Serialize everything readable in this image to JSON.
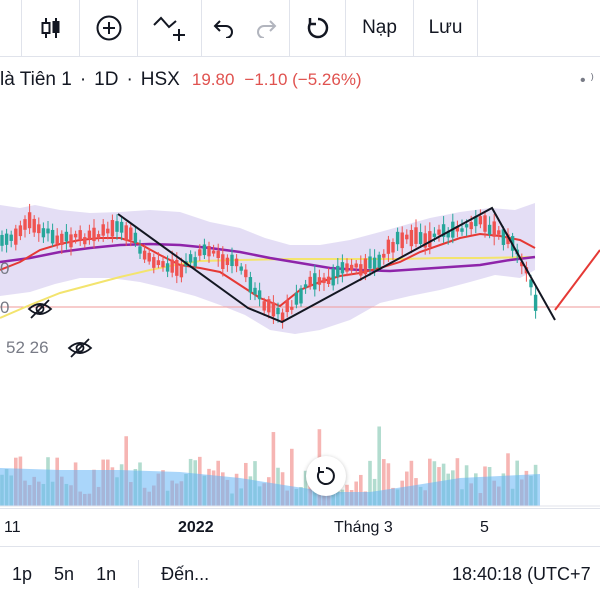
{
  "toolbar": {
    "reload_label": "Nạp",
    "save_label": "Lưu"
  },
  "symbol": {
    "name": "là Tiên 1",
    "interval": "1D",
    "exchange": "HSX",
    "price": "19.80",
    "change": "−1.10 (−5.26%)"
  },
  "indicator_labels": {
    "left_top": "0",
    "left_mid": "0",
    "ma_values": "52 26"
  },
  "x_axis": {
    "labels": [
      "11",
      "2022",
      "Tháng 3",
      "5"
    ]
  },
  "bottom_bar": {
    "range_1": "1p",
    "range_2": "5n",
    "range_3": "1n",
    "goto_label": "Đến...",
    "clock": "18:40:18 (UTC+7"
  },
  "colors": {
    "up": "#26a69a",
    "down": "#ef5350",
    "bollinger": "#d1c4e9",
    "ma_long": "#8e24aa",
    "ma_short": "#e53935",
    "ma_yellow": "#f5e663"
  }
}
